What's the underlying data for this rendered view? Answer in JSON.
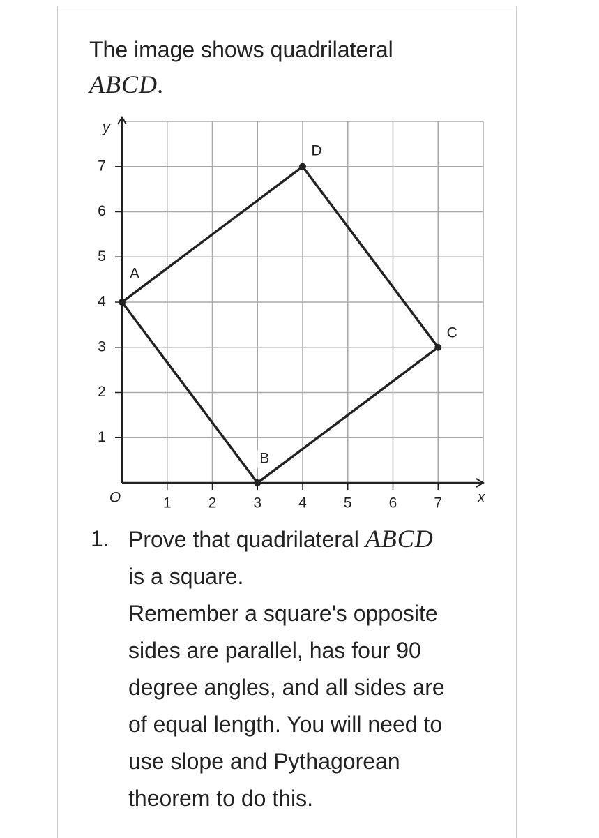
{
  "intro": {
    "text": "The image shows quadrilateral",
    "math": "ABCD."
  },
  "figure": {
    "xlim": [
      0,
      8
    ],
    "ylim": [
      0,
      8
    ],
    "xticks": [
      1,
      2,
      3,
      4,
      5,
      6,
      7
    ],
    "yticks": [
      1,
      2,
      3,
      4,
      5,
      6,
      7
    ],
    "x_label": "x",
    "y_label": "y",
    "origin_label": "O",
    "points": [
      {
        "label": "A",
        "x": 0,
        "y": 4
      },
      {
        "label": "B",
        "x": 3,
        "y": 0
      },
      {
        "label": "C",
        "x": 7,
        "y": 3
      },
      {
        "label": "D",
        "x": 4,
        "y": 7
      }
    ]
  },
  "question": {
    "number": "1.",
    "text": "Prove that quadrilateral",
    "math": "ABCD",
    "lines": [
      "is a square.",
      "Remember a square's opposite",
      "sides are parallel, has four 90",
      "degree angles, and all sides are",
      "of equal length. You will need to",
      "use slope and Pythagorean",
      "theorem to do this."
    ]
  }
}
